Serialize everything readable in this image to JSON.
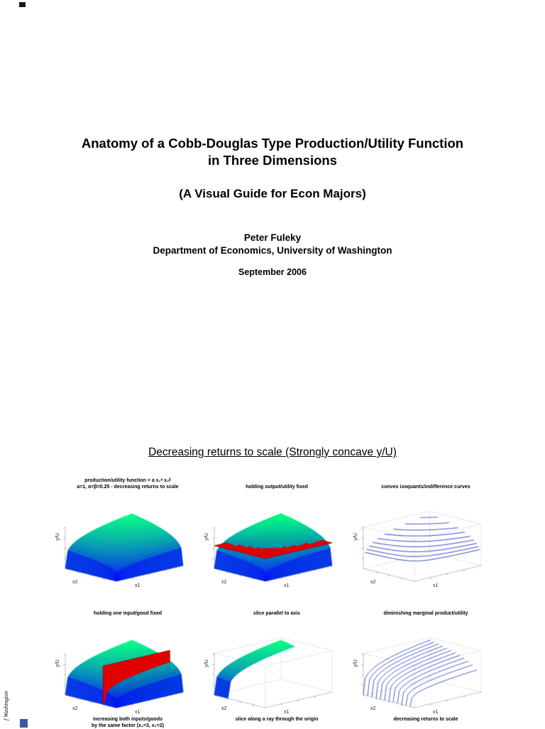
{
  "paper": {
    "title_line1": "Anatomy of a Cobb-Douglas Type Production/Utility Function",
    "title_line2": "in Three Dimensions",
    "subtitle": "(A Visual Guide for Econ Majors)",
    "author": "Peter Fuleky",
    "affiliation": "Department of Economics, University of Washington",
    "date": "September 2006",
    "section_heading": "Decreasing returns to scale (Strongly concave y/U)",
    "side_text": "f Washington"
  },
  "figures": {
    "axis_labels": {
      "x": "x1",
      "y": "x2",
      "z": "y/U"
    },
    "panels": [
      {
        "title": "production/utility function = a x₁ᵅ x₂ᵝ",
        "subtitle": "a=1, α=β=0.25 - decreasing returns to scale"
      },
      {
        "title": "holding output/utility fixed"
      },
      {
        "title": "convex isoquants/indifference curves"
      },
      {
        "title": "holding one input/good fixed",
        "caption_line1": "increasing both inputs/goods",
        "caption_line2": "by the same factor (x₁=3, x₂=2)"
      },
      {
        "title": "slice parallel to axis",
        "caption_line1": "slice along a ray through the origin"
      },
      {
        "title": "diminishing marginal product/utility",
        "caption_line1": "decreasing returns to scale"
      }
    ]
  },
  "chart_data": [
    {
      "type": "surface",
      "title": "production/utility function = a x1^α x2^β",
      "subtitle": "a=1, α=β=0.25 - decreasing returns to scale",
      "function": "y = a * x1^alpha * x2^beta",
      "params": {
        "a": 1,
        "alpha": 0.25,
        "beta": 0.25
      },
      "x1_range": [
        0,
        3
      ],
      "x2_range": [
        0,
        3
      ],
      "xlabel": "x1",
      "ylabel": "x2",
      "zlabel": "y/U",
      "colormap": "blue-to-green"
    },
    {
      "type": "surface",
      "title": "holding output/utility fixed",
      "function": "y = a * x1^alpha * x2^beta",
      "params": {
        "a": 1,
        "alpha": 0.25,
        "beta": 0.25
      },
      "x1_range": [
        0,
        3
      ],
      "x2_range": [
        0,
        3
      ],
      "xlabel": "x1",
      "ylabel": "x2",
      "zlabel": "y/U",
      "colormap": "blue-to-green",
      "overlay": {
        "kind": "horizontal-plane",
        "level_frac": 0.58,
        "color": "#e00000"
      }
    },
    {
      "type": "contour3",
      "title": "convex isoquants/indifference curves",
      "function": "a * x1^alpha * x2^beta = const",
      "params": {
        "a": 1,
        "alpha": 0.25,
        "beta": 0.25
      },
      "x1_range": [
        0,
        3
      ],
      "x2_range": [
        0,
        3
      ],
      "xlabel": "x1",
      "ylabel": "x2",
      "zlabel": "y/U",
      "levels_frac": [
        0.4,
        0.47,
        0.54,
        0.61,
        0.68,
        0.75,
        0.82,
        0.89,
        0.96
      ],
      "line_color": "#2233bb"
    },
    {
      "type": "surface",
      "title": "holding one input/good fixed",
      "function": "y = a * x1^alpha * x2^beta",
      "params": {
        "a": 1,
        "alpha": 0.25,
        "beta": 0.25
      },
      "x1_range": [
        0,
        3
      ],
      "x2_range": [
        0,
        3
      ],
      "xlabel": "x1",
      "ylabel": "x2",
      "zlabel": "y/U",
      "colormap": "blue-to-green",
      "overlay": {
        "kind": "vertical-plane-x2",
        "x2_frac": 0.26,
        "top_frac": 0.98,
        "color": "#e00000"
      }
    },
    {
      "type": "surface",
      "title": "slice parallel to axis",
      "function": "y = a * x1^alpha * x2^beta",
      "params": {
        "a": 1,
        "alpha": 0.25,
        "beta": 0.25
      },
      "x1_range": [
        0,
        3
      ],
      "x2_range": [
        0,
        3
      ],
      "xlabel": "x1",
      "ylabel": "x2",
      "zlabel": "y/U",
      "colormap": "blue-to-green",
      "band_x2_frac": [
        0.72,
        1
      ]
    },
    {
      "type": "curves3",
      "title": "diminishing marginal product/utility",
      "function": "y(x1) at fixed x2 levels",
      "params": {
        "a": 1,
        "alpha": 0.25,
        "beta": 0.25
      },
      "x1_range": [
        0,
        3
      ],
      "x2_range": [
        0,
        3
      ],
      "xlabel": "x1",
      "ylabel": "x2",
      "zlabel": "y/U",
      "curve_count": 12,
      "line_color": "#2233bb"
    }
  ]
}
